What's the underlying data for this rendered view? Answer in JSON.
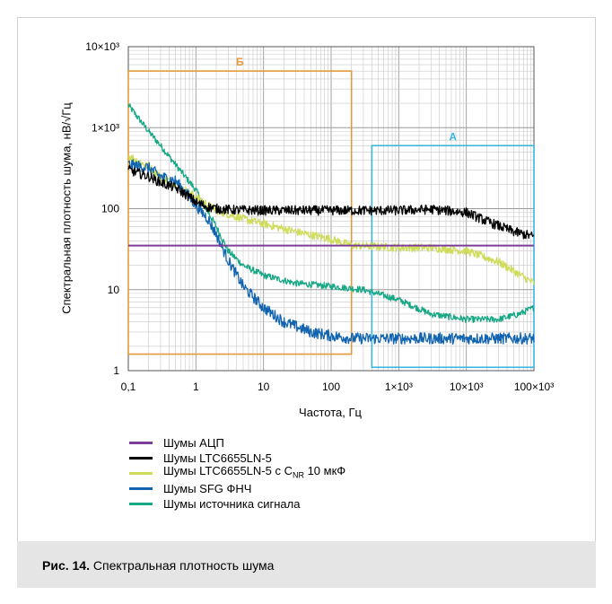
{
  "chart_data": {
    "type": "line",
    "xscale": "log",
    "yscale": "log",
    "xlim": [
      0.1,
      100000
    ],
    "ylim": [
      1,
      10000
    ],
    "xlabel": "Частота, Гц",
    "ylabel": "Спектральная плотность шума, нВ/√Гц",
    "x_tick_labels": [
      {
        "value": 0.1,
        "label": "0,1"
      },
      {
        "value": 1,
        "label": "1"
      },
      {
        "value": 10,
        "label": "10"
      },
      {
        "value": 100,
        "label": "100"
      },
      {
        "value": 1000,
        "label": "1×10³"
      },
      {
        "value": 10000,
        "label": "10×10³"
      },
      {
        "value": 100000,
        "label": "100×10³"
      }
    ],
    "y_tick_labels": [
      {
        "value": 1,
        "label": "1"
      },
      {
        "value": 10,
        "label": "10"
      },
      {
        "value": 100,
        "label": "100"
      },
      {
        "value": 1000,
        "label": "1×10³"
      },
      {
        "value": 10000,
        "label": "10×10³"
      }
    ],
    "grid": true,
    "legend_position": "below",
    "series": [
      {
        "name": "Шумы АЦП",
        "color": "#7b3f97",
        "x": [
          0.1,
          100000
        ],
        "y": [
          35,
          35
        ]
      },
      {
        "name": "Шумы LTC6655LN-5",
        "color": "#000000",
        "x": [
          0.1,
          0.2,
          0.3,
          0.5,
          0.8,
          1,
          1.5,
          2,
          3,
          5,
          10,
          30,
          100,
          300,
          1000,
          3000,
          10000,
          20000,
          50000,
          100000
        ],
        "y": [
          300,
          250,
          210,
          180,
          140,
          120,
          105,
          100,
          97,
          96,
          95,
          95,
          95,
          95,
          95,
          98,
          90,
          70,
          52,
          45
        ]
      },
      {
        "name": "Шумы LTC6655LN-5 с C_NR 10 мкФ",
        "color": "#cfdc5a",
        "x": [
          0.1,
          0.2,
          0.3,
          0.5,
          1,
          2,
          5,
          10,
          30,
          100,
          200,
          500,
          1000,
          3000,
          10000,
          30000,
          100000
        ],
        "y": [
          450,
          330,
          250,
          200,
          140,
          95,
          75,
          65,
          52,
          42,
          35,
          34,
          33,
          33,
          30,
          22,
          12
        ]
      },
      {
        "name": "Шумы SFG ФНЧ",
        "color": "#1264b0",
        "x": [
          0.1,
          0.2,
          0.3,
          0.5,
          0.8,
          1,
          1.5,
          2,
          3,
          5,
          10,
          20,
          50,
          100,
          200,
          1000,
          10000,
          100000
        ],
        "y": [
          350,
          320,
          250,
          220,
          140,
          110,
          75,
          48,
          23,
          11,
          6,
          4,
          3,
          2.7,
          2.5,
          2.5,
          2.5,
          2.5
        ]
      },
      {
        "name": "Шумы источника сигнала",
        "color": "#16a784",
        "x": [
          0.1,
          0.2,
          0.3,
          0.5,
          1,
          2,
          3,
          5,
          10,
          30,
          100,
          300,
          1000,
          3000,
          10000,
          30000,
          60000,
          100000
        ],
        "y": [
          1900,
          900,
          600,
          350,
          170,
          60,
          30,
          20,
          15,
          12,
          11,
          10,
          7.5,
          5,
          4.3,
          4.3,
          5,
          6
        ]
      }
    ],
    "annotations": [
      {
        "label": "Б",
        "color": "#e39a3b",
        "x_range": [
          0.1,
          200
        ],
        "y_range": [
          1.6,
          5000
        ]
      },
      {
        "label": "А",
        "color": "#3bb4e0",
        "x_range": [
          400,
          100000
        ],
        "y_range": [
          1.1,
          600
        ]
      }
    ]
  },
  "legend": [
    {
      "label": "Шумы АЦП",
      "color": "#7b3f97"
    },
    {
      "label": "Шумы LTC6655LN-5",
      "color": "#000000"
    },
    {
      "label_pre": "Шумы LTC6655LN-5 с C",
      "label_sub": "NR",
      "label_post": " 10 мкФ",
      "color": "#cfdc5a"
    },
    {
      "label": "Шумы SFG ФНЧ",
      "color": "#1264b0"
    },
    {
      "label": "Шумы источника сигнала",
      "color": "#16a784"
    }
  ],
  "caption": {
    "prefix": "Рис. 14.",
    "text": " Спектральная плотность шума"
  }
}
